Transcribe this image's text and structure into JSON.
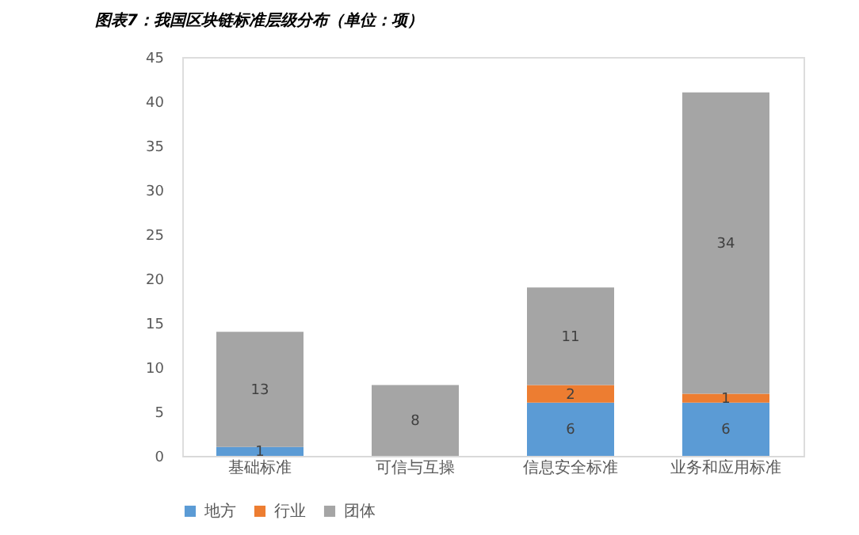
{
  "chart_data": {
    "type": "bar",
    "stacked": true,
    "title": "图表7：我国区块链标准层级分布（单位：项）",
    "categories": [
      "基础标准",
      "可信与互操",
      "信息安全标准",
      "业务和应用标准"
    ],
    "series": [
      {
        "name": "地方",
        "color": "#5b9bd5",
        "values": [
          1,
          null,
          6,
          6
        ]
      },
      {
        "name": "行业",
        "color": "#ed7d31",
        "values": [
          null,
          null,
          2,
          1
        ]
      },
      {
        "name": "团体",
        "color": "#a5a5a5",
        "values": [
          13,
          8,
          11,
          34
        ]
      }
    ],
    "ylim": [
      0,
      45
    ],
    "yticks": [
      0,
      5,
      10,
      15,
      20,
      25,
      30,
      35,
      40,
      45
    ],
    "grid": false,
    "legend": "bottom",
    "data_labels": true
  }
}
